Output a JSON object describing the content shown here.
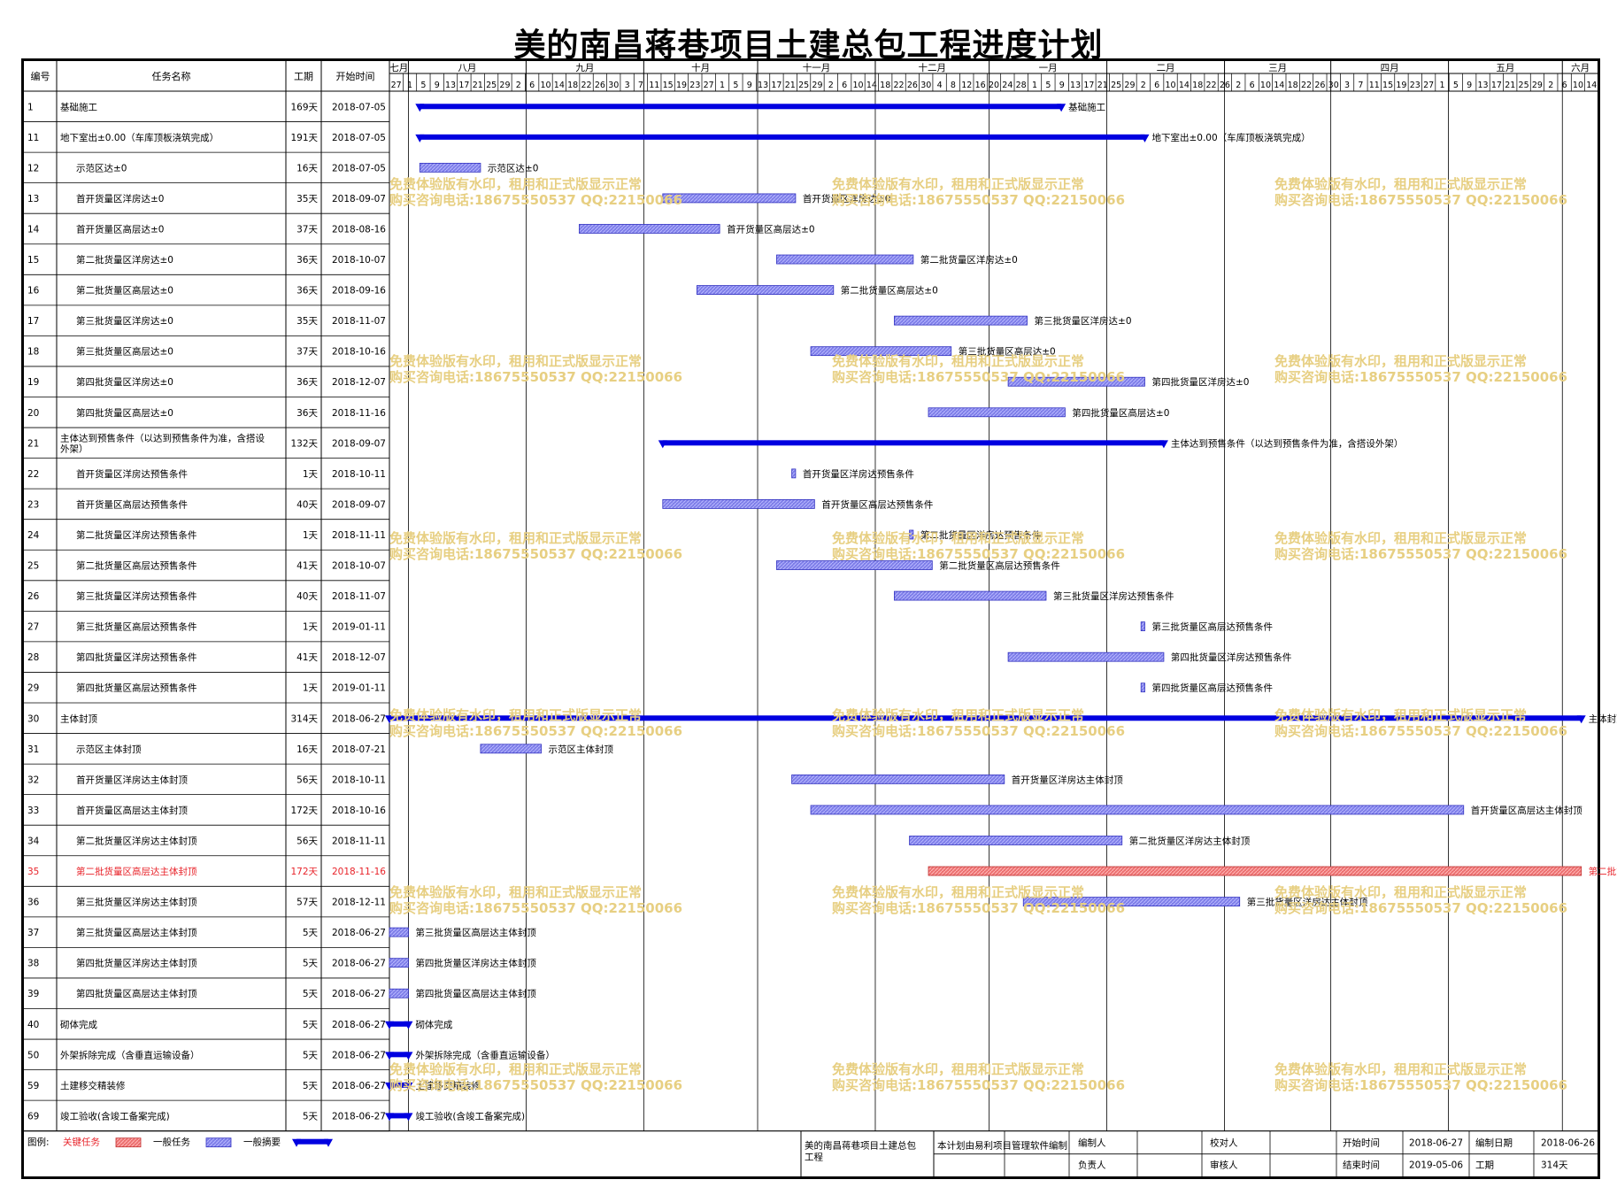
{
  "title": "美的南昌蒋巷项目土建总包工程进度计划",
  "headers": {
    "id": "编号",
    "name": "任务名称",
    "dur": "工期",
    "start": "开始时间"
  },
  "timeline": {
    "months": [
      "七月",
      "八月",
      "九月",
      "十月",
      "十一月",
      "十二月",
      "一月",
      "二月",
      "三月",
      "四月",
      "五月",
      "六月"
    ],
    "days": [
      "27",
      "1",
      "5",
      "9",
      "13",
      "17",
      "21",
      "25",
      "29",
      "2",
      "6",
      "10",
      "14",
      "18",
      "22",
      "26",
      "30",
      "3",
      "7",
      "11",
      "15",
      "19",
      "23",
      "27",
      "1",
      "5",
      "9",
      "13",
      "17",
      "21",
      "25",
      "29",
      "2",
      "6",
      "10",
      "14",
      "18",
      "22",
      "26",
      "30",
      "4",
      "8",
      "12",
      "16",
      "20",
      "24",
      "28",
      "1",
      "5",
      "9",
      "13",
      "17",
      "21",
      "25",
      "29",
      "2",
      "6",
      "10",
      "14",
      "18",
      "22",
      "26",
      "2",
      "6",
      "10",
      "14",
      "18",
      "22",
      "26",
      "30",
      "3",
      "7",
      "11",
      "15",
      "19",
      "23",
      "27",
      "1",
      "5",
      "9",
      "13",
      "17",
      "21",
      "25",
      "29",
      "2",
      "6",
      "10",
      "14"
    ],
    "origin": "2018-06-27"
  },
  "tasks": [
    {
      "id": "1",
      "name": "基础施工",
      "dur": "169天",
      "start": "2018-07-05",
      "bar": "基础施工",
      "type": "summary",
      "level": 0
    },
    {
      "id": "11",
      "name": "地下室出±0.00（车库顶板浇筑完成）",
      "dur": "191天",
      "start": "2018-07-05",
      "bar": "地下室出±0.00（车库顶板浇筑完成）",
      "type": "summary",
      "level": 0
    },
    {
      "id": "12",
      "name": "示范区达±0",
      "dur": "16天",
      "start": "2018-07-05",
      "bar": "示范区达±0",
      "type": "normal",
      "level": 1
    },
    {
      "id": "13",
      "name": "首开货量区洋房达±0",
      "dur": "35天",
      "start": "2018-09-07",
      "bar": "首开货量区洋房达±0",
      "type": "normal",
      "level": 1
    },
    {
      "id": "14",
      "name": "首开货量区高层达±0",
      "dur": "37天",
      "start": "2018-08-16",
      "bar": "首开货量区高层达±0",
      "type": "normal",
      "level": 1
    },
    {
      "id": "15",
      "name": "第二批货量区洋房达±0",
      "dur": "36天",
      "start": "2018-10-07",
      "bar": "第二批货量区洋房达±0",
      "type": "normal",
      "level": 1
    },
    {
      "id": "16",
      "name": "第二批货量区高层达±0",
      "dur": "36天",
      "start": "2018-09-16",
      "bar": "第二批货量区高层达±0",
      "type": "normal",
      "level": 1
    },
    {
      "id": "17",
      "name": "第三批货量区洋房达±0",
      "dur": "35天",
      "start": "2018-11-07",
      "bar": "第三批货量区洋房达±0",
      "type": "normal",
      "level": 1
    },
    {
      "id": "18",
      "name": "第三批货量区高层达±0",
      "dur": "37天",
      "start": "2018-10-16",
      "bar": "第三批货量区高层达±0",
      "type": "normal",
      "level": 1
    },
    {
      "id": "19",
      "name": "第四批货量区洋房达±0",
      "dur": "36天",
      "start": "2018-12-07",
      "bar": "第四批货量区洋房达±0",
      "type": "normal",
      "level": 1
    },
    {
      "id": "20",
      "name": "第四批货量区高层达±0",
      "dur": "36天",
      "start": "2018-11-16",
      "bar": "第四批货量区高层达±0",
      "type": "normal",
      "level": 1
    },
    {
      "id": "21",
      "name": "主体达到预售条件（以达到预售条件为准，含搭设外架）",
      "dur": "132天",
      "start": "2018-09-07",
      "bar": "主体达到预售条件（以达到预售条件为准，含搭设外架）",
      "type": "summary",
      "level": 0
    },
    {
      "id": "22",
      "name": "首开货量区洋房达预售条件",
      "dur": "1天",
      "start": "2018-10-11",
      "bar": "首开货量区洋房达预售条件",
      "type": "normal",
      "level": 1
    },
    {
      "id": "23",
      "name": "首开货量区高层达预售条件",
      "dur": "40天",
      "start": "2018-09-07",
      "bar": "首开货量区高层达预售条件",
      "type": "normal",
      "level": 1
    },
    {
      "id": "24",
      "name": "第二批货量区洋房达预售条件",
      "dur": "1天",
      "start": "2018-11-11",
      "bar": "第二批货量区洋房达预售条件",
      "type": "normal",
      "level": 1
    },
    {
      "id": "25",
      "name": "第二批货量区高层达预售条件",
      "dur": "41天",
      "start": "2018-10-07",
      "bar": "第二批货量区高层达预售条件",
      "type": "normal",
      "level": 1
    },
    {
      "id": "26",
      "name": "第三批货量区洋房达预售条件",
      "dur": "40天",
      "start": "2018-11-07",
      "bar": "第三批货量区洋房达预售条件",
      "type": "normal",
      "level": 1
    },
    {
      "id": "27",
      "name": "第三批货量区高层达预售条件",
      "dur": "1天",
      "start": "2019-01-11",
      "bar": "第三批货量区高层达预售条件",
      "type": "normal",
      "level": 1
    },
    {
      "id": "28",
      "name": "第四批货量区洋房达预售条件",
      "dur": "41天",
      "start": "2018-12-07",
      "bar": "第四批货量区洋房达预售条件",
      "type": "normal",
      "level": 1
    },
    {
      "id": "29",
      "name": "第四批货量区高层达预售条件",
      "dur": "1天",
      "start": "2019-01-11",
      "bar": "第四批货量区高层达预售条件",
      "type": "normal",
      "level": 1
    },
    {
      "id": "30",
      "name": "主体封顶",
      "dur": "314天",
      "start": "2018-06-27",
      "bar": "主体封顶",
      "type": "summary",
      "level": 0
    },
    {
      "id": "31",
      "name": "示范区主体封顶",
      "dur": "16天",
      "start": "2018-07-21",
      "bar": "示范区主体封顶",
      "type": "normal",
      "level": 1
    },
    {
      "id": "32",
      "name": "首开货量区洋房达主体封顶",
      "dur": "56天",
      "start": "2018-10-11",
      "bar": "首开货量区洋房达主体封顶",
      "type": "normal",
      "level": 1
    },
    {
      "id": "33",
      "name": "首开货量区高层达主体封顶",
      "dur": "172天",
      "start": "2018-10-16",
      "bar": "首开货量区高层达主体封顶",
      "type": "normal",
      "level": 1
    },
    {
      "id": "34",
      "name": "第二批货量区洋房达主体封顶",
      "dur": "56天",
      "start": "2018-11-11",
      "bar": "第二批货量区洋房达主体封顶",
      "type": "normal",
      "level": 1
    },
    {
      "id": "35",
      "name": "第二批货量区高层达主体封顶",
      "dur": "172天",
      "start": "2018-11-16",
      "bar": "第二批货量区高层达主体封顶",
      "type": "critical",
      "level": 1
    },
    {
      "id": "36",
      "name": "第三批货量区洋房达主体封顶",
      "dur": "57天",
      "start": "2018-12-11",
      "bar": "第三批货量区洋房达主体封顶",
      "type": "normal",
      "level": 1
    },
    {
      "id": "37",
      "name": "第三批货量区高层达主体封顶",
      "dur": "5天",
      "start": "2018-06-27",
      "bar": "第三批货量区高层达主体封顶",
      "type": "normal",
      "level": 1
    },
    {
      "id": "38",
      "name": "第四批货量区洋房达主体封顶",
      "dur": "5天",
      "start": "2018-06-27",
      "bar": "第四批货量区洋房达主体封顶",
      "type": "normal",
      "level": 1
    },
    {
      "id": "39",
      "name": "第四批货量区高层达主体封顶",
      "dur": "5天",
      "start": "2018-06-27",
      "bar": "第四批货量区高层达主体封顶",
      "type": "normal",
      "level": 1
    },
    {
      "id": "40",
      "name": "砌体完成",
      "dur": "5天",
      "start": "2018-06-27",
      "bar": "砌体完成",
      "type": "summary",
      "level": 0
    },
    {
      "id": "50",
      "name": "外架拆除完成（含垂直运输设备）",
      "dur": "5天",
      "start": "2018-06-27",
      "bar": "外架拆除完成（含垂直运输设备）",
      "type": "summary",
      "level": 0
    },
    {
      "id": "59",
      "name": "土建移交精装修",
      "dur": "5天",
      "start": "2018-06-27",
      "bar": "土建移交精装修",
      "type": "summary",
      "level": 0
    },
    {
      "id": "69",
      "name": "竣工验收(含竣工备案完成)",
      "dur": "5天",
      "start": "2018-06-27",
      "bar": "竣工验收(含竣工备案完成)",
      "type": "summary",
      "level": 0
    }
  ],
  "watermark": {
    "line1": "免费体验版有水印，租用和正式版显示正常",
    "line2": "购买咨询电话:18675550537 QQ:22150066"
  },
  "legend": {
    "label": "图例:",
    "critical": "关键任务",
    "normal": "一般任务",
    "summary": "一般摘要"
  },
  "footer": {
    "project": "美的南昌蒋巷项目土建总包工程",
    "note": "本计划由易利项目管理软件编制",
    "compiler": "编制人",
    "checker": "校对人",
    "principal": "负责人",
    "reviewer": "审核人",
    "start_label": "开始时间",
    "start_value": "2018-06-27",
    "end_label": "结束时间",
    "end_value": "2019-05-06",
    "date_label": "编制日期",
    "date_value": "2018-06-26",
    "dur_label": "工期",
    "dur_value": "314天"
  },
  "colors": {
    "critical": "#f08080",
    "critical_text": "#e8232a",
    "normal": "#8c8cf0",
    "summary": "#0000e0",
    "grid": "#000000",
    "watermark": "#e7cf82"
  }
}
